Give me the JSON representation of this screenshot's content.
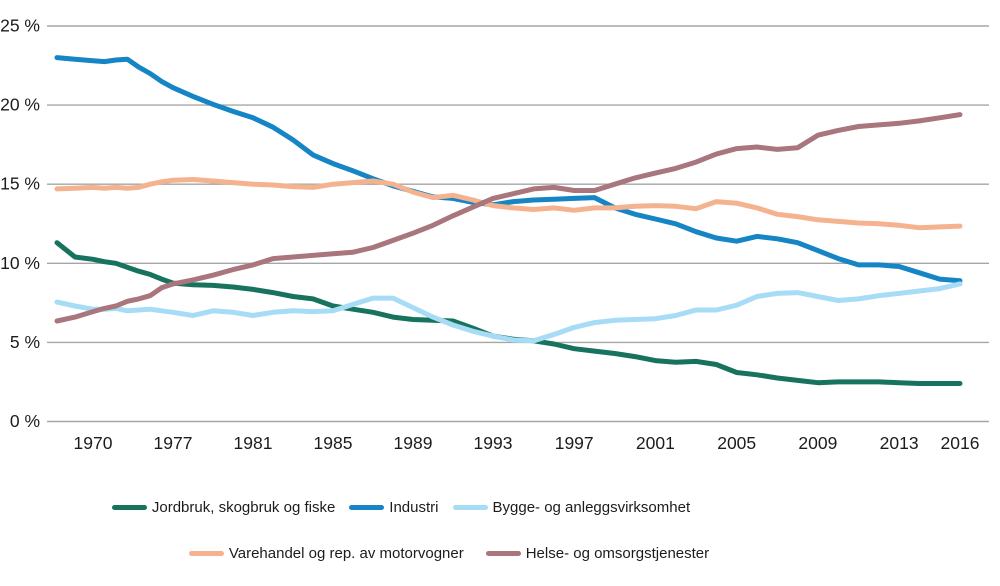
{
  "page": {
    "background": "#ffffff"
  },
  "chart_data": {
    "type": "line",
    "grid": "horizontal",
    "legend_position": "bottom",
    "ylim": [
      0,
      25
    ],
    "x_range_years": [
      1968,
      2016
    ],
    "y_ticks": [
      0,
      5,
      10,
      15,
      20,
      25
    ],
    "y_tick_labels": [
      "0 %",
      "5 %",
      "10 %",
      "15 %",
      "20 %",
      "25 %"
    ],
    "x_tick_years": [
      1970,
      1977,
      1981,
      1985,
      1989,
      1993,
      1997,
      2001,
      2005,
      2009,
      2013,
      2016
    ],
    "x_tick_labels": [
      "1970",
      "1977",
      "1981",
      "1985",
      "1989",
      "1993",
      "1997",
      "2001",
      "2005",
      "2009",
      "2013",
      "2016"
    ],
    "colors": {
      "gridline": "#A6A6A6",
      "text": "#1C1C1C"
    },
    "years": [
      1968,
      1969,
      1970,
      1971,
      1972,
      1973,
      1974,
      1975,
      1976,
      1977,
      1978,
      1979,
      1980,
      1981,
      1982,
      1983,
      1984,
      1985,
      1986,
      1987,
      1988,
      1989,
      1990,
      1991,
      1992,
      1993,
      1994,
      1995,
      1996,
      1997,
      1998,
      1999,
      2000,
      2001,
      2002,
      2003,
      2004,
      2005,
      2006,
      2007,
      2008,
      2009,
      2010,
      2011,
      2012,
      2013,
      2014,
      2015,
      2016
    ],
    "series": [
      {
        "id": "jordbruk",
        "name": "Jordbruk, skogbruk og fiske",
        "color": "#17735E",
        "legend_row": 1,
        "values": [
          11.3,
          10.4,
          10.25,
          10.1,
          10.0,
          9.75,
          9.5,
          9.3,
          9.0,
          8.75,
          8.65,
          8.6,
          8.5,
          8.35,
          8.15,
          7.9,
          7.75,
          7.3,
          7.1,
          6.9,
          6.6,
          6.45,
          6.4,
          6.35,
          5.9,
          5.4,
          5.2,
          5.1,
          4.9,
          4.6,
          4.45,
          4.3,
          4.1,
          3.85,
          3.75,
          3.8,
          3.6,
          3.1,
          2.95,
          2.75,
          2.6,
          2.45,
          2.5,
          2.5,
          2.5,
          2.45,
          2.4,
          2.4,
          2.4
        ]
      },
      {
        "id": "industri",
        "name": "Industri",
        "color": "#1585C5",
        "legend_row": 1,
        "values": [
          23.0,
          22.9,
          22.8,
          22.75,
          22.85,
          22.9,
          22.4,
          22.0,
          21.5,
          21.1,
          20.55,
          20.05,
          19.6,
          19.2,
          18.6,
          17.8,
          16.85,
          16.3,
          15.85,
          15.35,
          14.9,
          14.55,
          14.2,
          14.1,
          13.85,
          13.7,
          13.9,
          14.0,
          14.05,
          14.1,
          14.15,
          13.5,
          13.1,
          12.8,
          12.5,
          12.0,
          11.6,
          11.4,
          11.7,
          11.55,
          11.3,
          10.8,
          10.3,
          9.9,
          9.9,
          9.8,
          9.4,
          9.0,
          8.9
        ]
      },
      {
        "id": "bygge",
        "name": "Bygge- og anleggsvirksomhet",
        "color": "#A6DCF5",
        "legend_row": 1,
        "values": [
          7.55,
          7.3,
          7.1,
          7.1,
          7.15,
          7.0,
          7.05,
          7.1,
          7.0,
          6.9,
          6.7,
          7.0,
          6.9,
          6.7,
          6.9,
          7.0,
          6.95,
          7.0,
          7.4,
          7.8,
          7.8,
          7.2,
          6.6,
          6.1,
          5.7,
          5.4,
          5.15,
          5.1,
          5.5,
          5.95,
          6.25,
          6.4,
          6.45,
          6.5,
          6.7,
          7.05,
          7.05,
          7.35,
          7.9,
          8.1,
          8.15,
          7.9,
          7.65,
          7.75,
          7.95,
          8.1,
          8.25,
          8.4,
          8.7
        ]
      },
      {
        "id": "varehandel",
        "name": "Varehandel og rep. av motorvogner",
        "color": "#F5B28E",
        "legend_row": 2,
        "values": [
          14.7,
          14.75,
          14.8,
          14.75,
          14.8,
          14.75,
          14.8,
          15.0,
          15.15,
          15.25,
          15.3,
          15.2,
          15.1,
          15.0,
          14.95,
          14.85,
          14.8,
          15.0,
          15.1,
          15.2,
          15.0,
          14.5,
          14.15,
          14.3,
          14.0,
          13.65,
          13.5,
          13.4,
          13.5,
          13.35,
          13.5,
          13.5,
          13.6,
          13.65,
          13.6,
          13.45,
          13.9,
          13.8,
          13.5,
          13.1,
          12.95,
          12.75,
          12.65,
          12.55,
          12.5,
          12.4,
          12.25,
          12.3,
          12.35
        ]
      },
      {
        "id": "helse",
        "name": "Helse- og omsorgstjenester",
        "color": "#A8767C",
        "legend_row": 2,
        "values": [
          6.35,
          6.6,
          6.95,
          7.15,
          7.3,
          7.6,
          7.75,
          7.95,
          8.45,
          8.7,
          8.95,
          9.25,
          9.6,
          9.9,
          10.3,
          10.4,
          10.5,
          10.6,
          10.7,
          11.0,
          11.45,
          11.9,
          12.4,
          13.0,
          13.55,
          14.1,
          14.4,
          14.7,
          14.8,
          14.6,
          14.6,
          15.0,
          15.4,
          15.7,
          16.0,
          16.4,
          16.9,
          17.25,
          17.35,
          17.2,
          17.3,
          18.1,
          18.4,
          18.65,
          18.75,
          18.85,
          19.0,
          19.2,
          19.4
        ]
      }
    ]
  }
}
